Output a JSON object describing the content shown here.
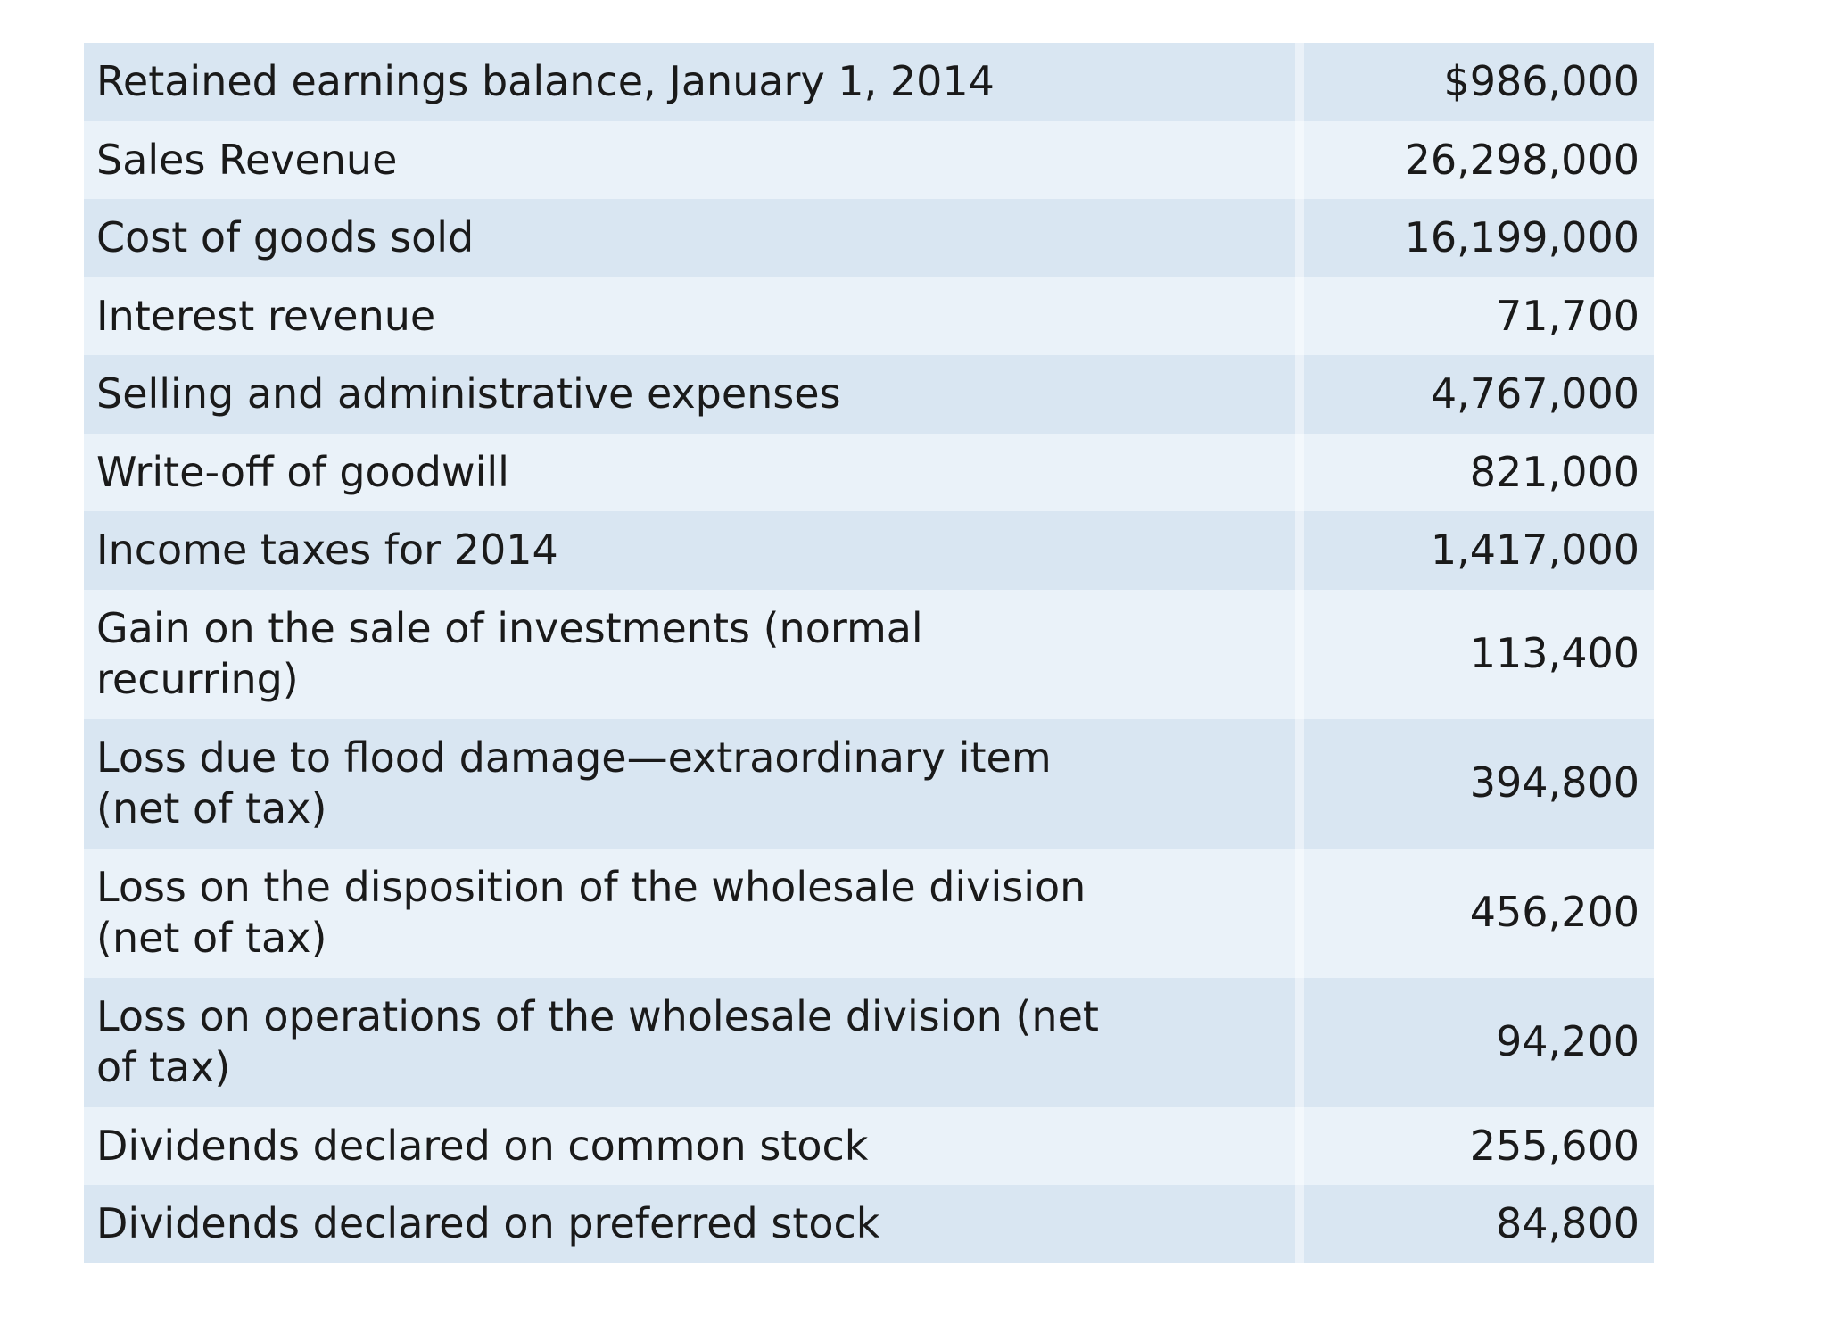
{
  "page": {
    "background_color": "#ffffff",
    "text_color": "#1a1a1a"
  },
  "table": {
    "description": "Financial data listing, year 2014",
    "row_color_odd": "#d9e6f2",
    "row_color_even": "#eaf2f9",
    "rows": [
      {
        "label": "Retained earnings balance, January 1, 2014",
        "amount": "$986,000"
      },
      {
        "label": "Sales Revenue",
        "amount": "26,298,000"
      },
      {
        "label": "Cost of goods sold",
        "amount": "16,199,000"
      },
      {
        "label": "Interest revenue",
        "amount": "71,700"
      },
      {
        "label": "Selling and administrative expenses",
        "amount": "4,767,000"
      },
      {
        "label": "Write-off of goodwill",
        "amount": "821,000"
      },
      {
        "label": "Income taxes for 2014",
        "amount": "1,417,000"
      },
      {
        "label": "Gain on the sale of investments (normal recurring)",
        "amount": "113,400"
      },
      {
        "label": "Loss due to flood damage—extraordinary item (net of tax)",
        "amount": "394,800"
      },
      {
        "label": "Loss on the disposition of the wholesale division (net of tax)",
        "amount": "456,200"
      },
      {
        "label": "Loss on operations of the wholesale division (net of tax)",
        "amount": "94,200"
      },
      {
        "label": "Dividends declared on common stock",
        "amount": "255,600"
      },
      {
        "label": "Dividends declared on preferred stock",
        "amount": "84,800"
      }
    ]
  }
}
